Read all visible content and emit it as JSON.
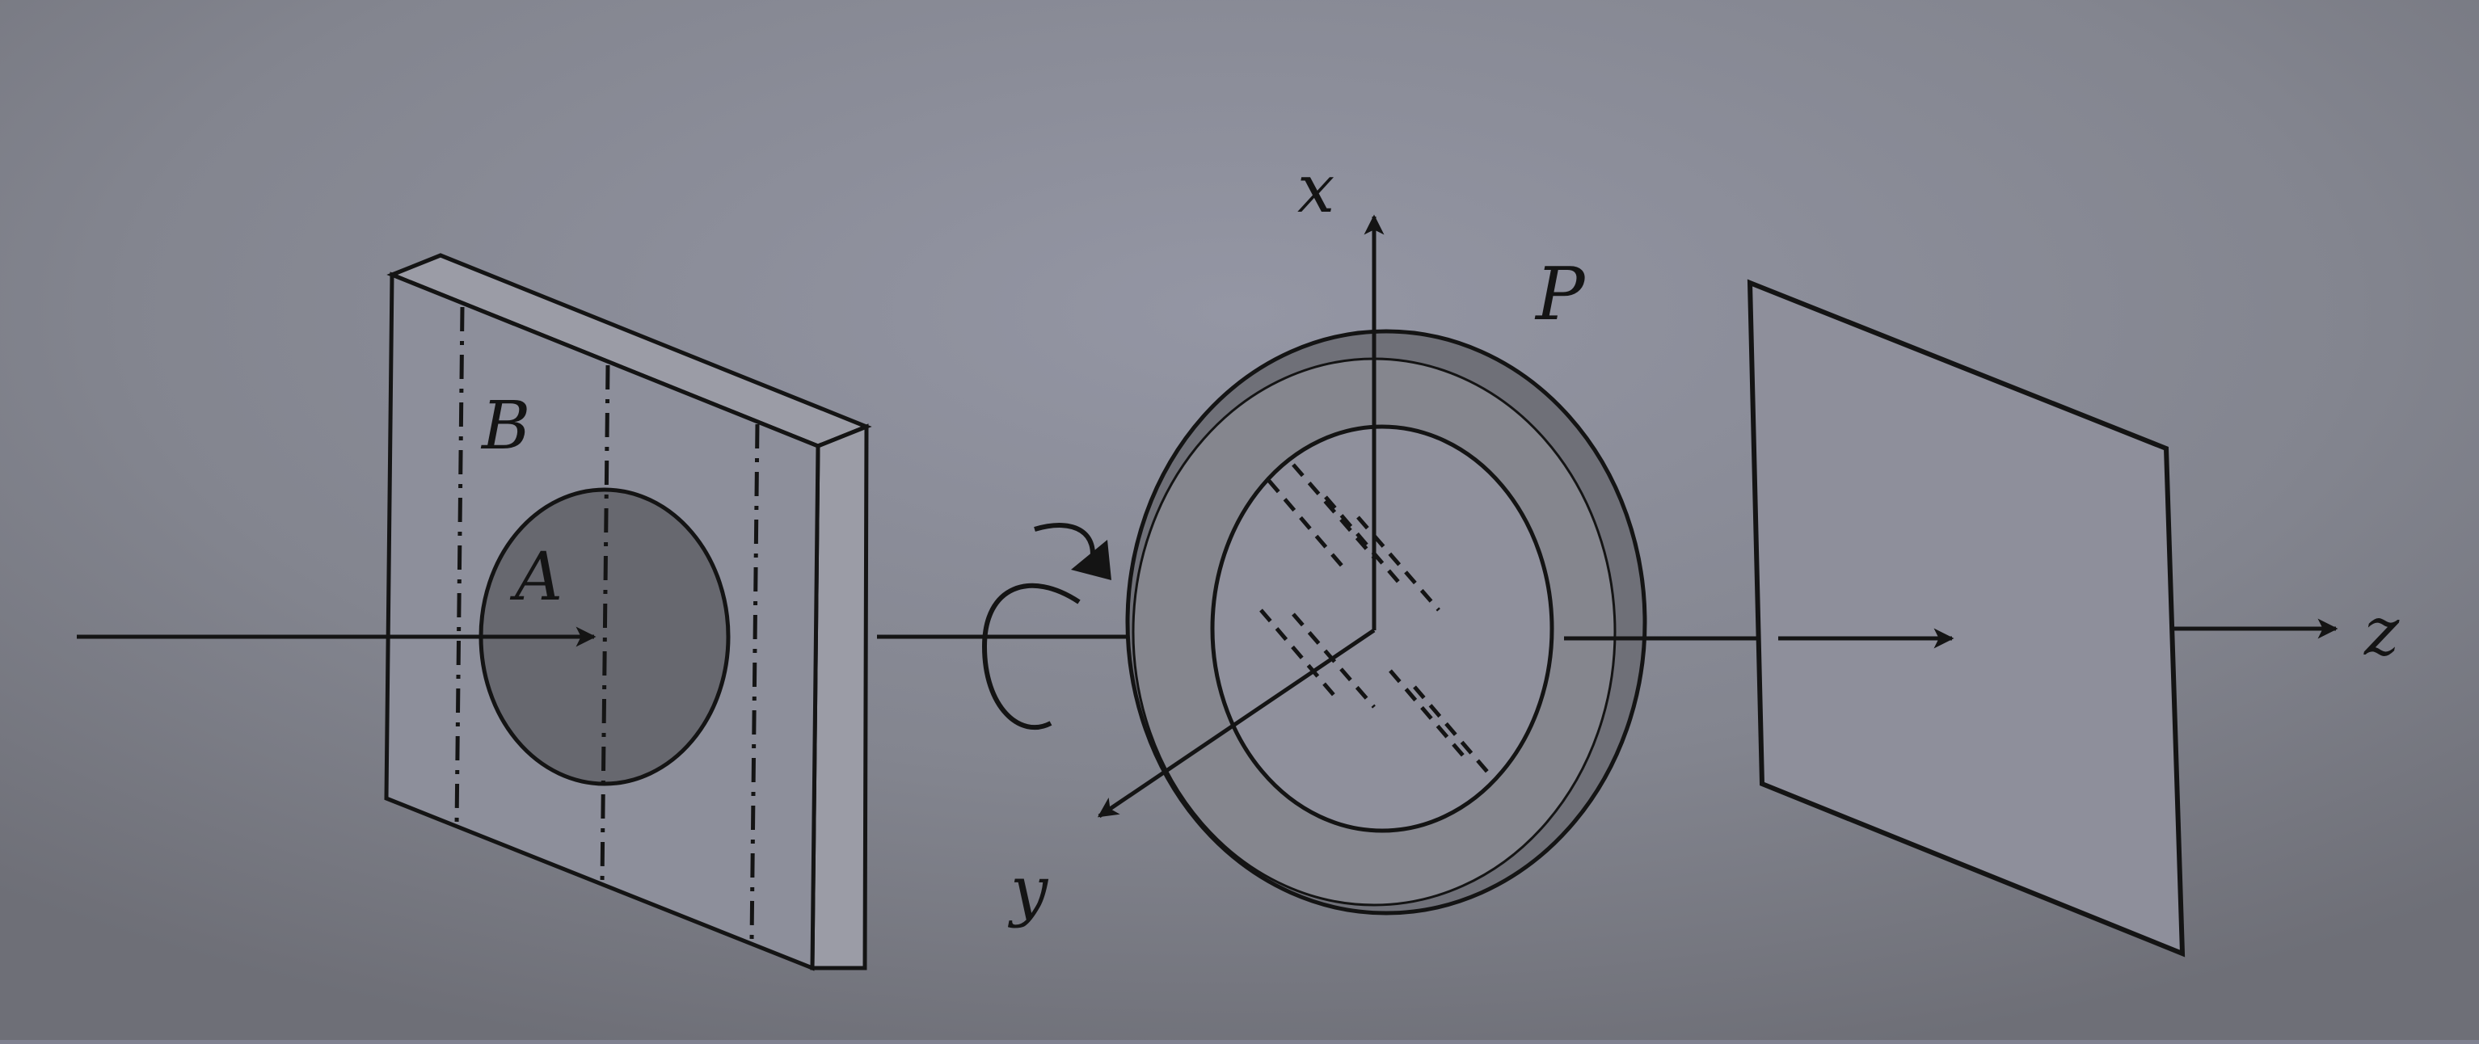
{
  "labels": {
    "x_axis": "x",
    "y_axis": "y",
    "z_axis": "z",
    "plate": "B",
    "disk": "A",
    "polarizer": "P"
  },
  "colors": {
    "background": "#7f8190",
    "ink": "#141414",
    "plate_face": "#8d8f9b",
    "plate_edge": "#9b9ca6",
    "disk_fill": "#67686f",
    "ring_outer": "#6f7078",
    "ring_inner": "#85868e",
    "ring_hole": "#8f909c",
    "screen_face": "#8e8f9b"
  },
  "icons": {
    "rotation": "rotation-arrow-icon"
  }
}
